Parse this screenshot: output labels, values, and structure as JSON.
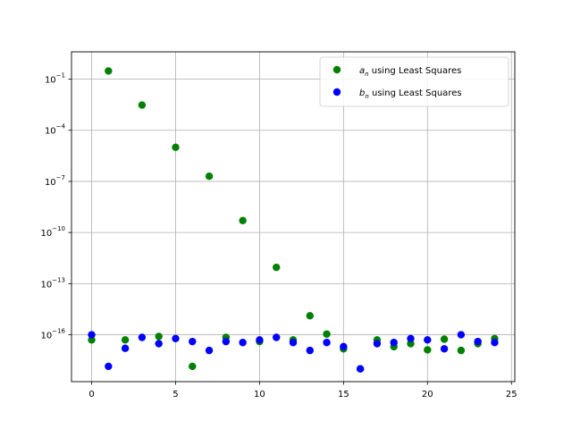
{
  "chart_data": {
    "type": "scatter",
    "title": "",
    "xlabel": "",
    "ylabel": "",
    "xlim": [
      -1.2,
      25.2
    ],
    "ylim_log10": [
      -18.75,
      0.6
    ],
    "y_scale": "log",
    "grid": true,
    "legend_placement": "top-right",
    "x_ticks": [
      0,
      5,
      10,
      15,
      20,
      25
    ],
    "x_tick_labels": [
      "0",
      "5",
      "10",
      "15",
      "20",
      "25"
    ],
    "y_ticks_log10": [
      -16,
      -13,
      -10,
      -7,
      -4,
      -1
    ],
    "y_tick_labels": [
      {
        "base": "10",
        "exp": "−16"
      },
      {
        "base": "10",
        "exp": "−13"
      },
      {
        "base": "10",
        "exp": "−10"
      },
      {
        "base": "10",
        "exp": "−7"
      },
      {
        "base": "10",
        "exp": "−4"
      },
      {
        "base": "10",
        "exp": "−1"
      }
    ],
    "series": [
      {
        "name": "a_n using Least Squares",
        "legend": {
          "sym": "a",
          "sub": "n",
          "rest": " using Least Squares"
        },
        "color": "#008000",
        "x": [
          0,
          1,
          2,
          3,
          4,
          5,
          6,
          7,
          8,
          9,
          10,
          11,
          12,
          13,
          14,
          15,
          16,
          17,
          18,
          19,
          20,
          21,
          22,
          23,
          24
        ],
        "y": [
          5e-17,
          0.3,
          5e-17,
          0.003,
          8e-17,
          1e-05,
          1.4e-18,
          2e-07,
          7e-17,
          5e-10,
          4e-17,
          9e-13,
          5e-17,
          1.3e-15,
          1.1e-16,
          1.5e-17,
          1e-18,
          5e-17,
          2e-17,
          3e-17,
          1.3e-17,
          5.5e-17,
          1.2e-17,
          3e-17,
          6e-17
        ]
      },
      {
        "name": "b_n using Least Squares",
        "legend": {
          "sym": "b",
          "sub": "n",
          "rest": " using Least Squares"
        },
        "color": "#0000ff",
        "x": [
          0,
          1,
          2,
          3,
          4,
          5,
          6,
          7,
          8,
          9,
          10,
          11,
          12,
          13,
          14,
          15,
          16,
          17,
          18,
          19,
          20,
          21,
          22,
          23,
          24
        ],
        "y": [
          1e-16,
          1.4e-18,
          1.6e-17,
          7e-17,
          3e-17,
          6e-17,
          4e-17,
          1.2e-17,
          4e-17,
          3.5e-17,
          5e-17,
          7e-17,
          3.5e-17,
          1.2e-17,
          3.5e-17,
          2e-17,
          1e-18,
          3e-17,
          3.5e-17,
          6e-17,
          5e-17,
          1.5e-17,
          1e-16,
          4e-17,
          3.5e-17
        ]
      }
    ]
  }
}
